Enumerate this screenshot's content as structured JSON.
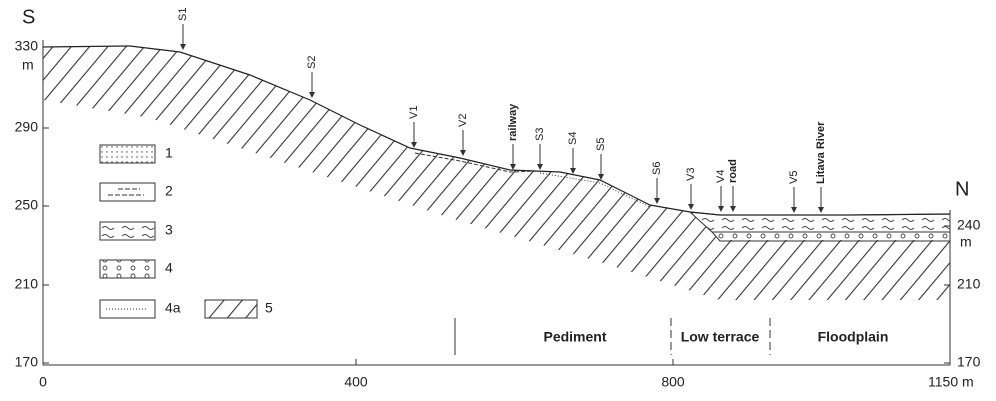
{
  "header": {
    "left": "S",
    "right": "N"
  },
  "axes": {
    "left_ticks": [
      "330",
      "290",
      "250",
      "210",
      "170"
    ],
    "left_unit": "m",
    "right_ticks": [
      "240",
      "210",
      "170"
    ],
    "right_unit": "m",
    "x_ticks": [
      "0",
      "400",
      "800",
      "1150 m"
    ]
  },
  "sites": [
    "S1",
    "S2",
    "V1",
    "V2",
    "railway",
    "S3",
    "S4",
    "S5",
    "S6",
    "V3",
    "V4",
    "road",
    "V5",
    "Litava River"
  ],
  "legend": [
    "1",
    "2",
    "3",
    "4",
    "4a",
    "5"
  ],
  "zones": [
    "Pediment",
    "Low terrace",
    "Floodplain"
  ]
}
